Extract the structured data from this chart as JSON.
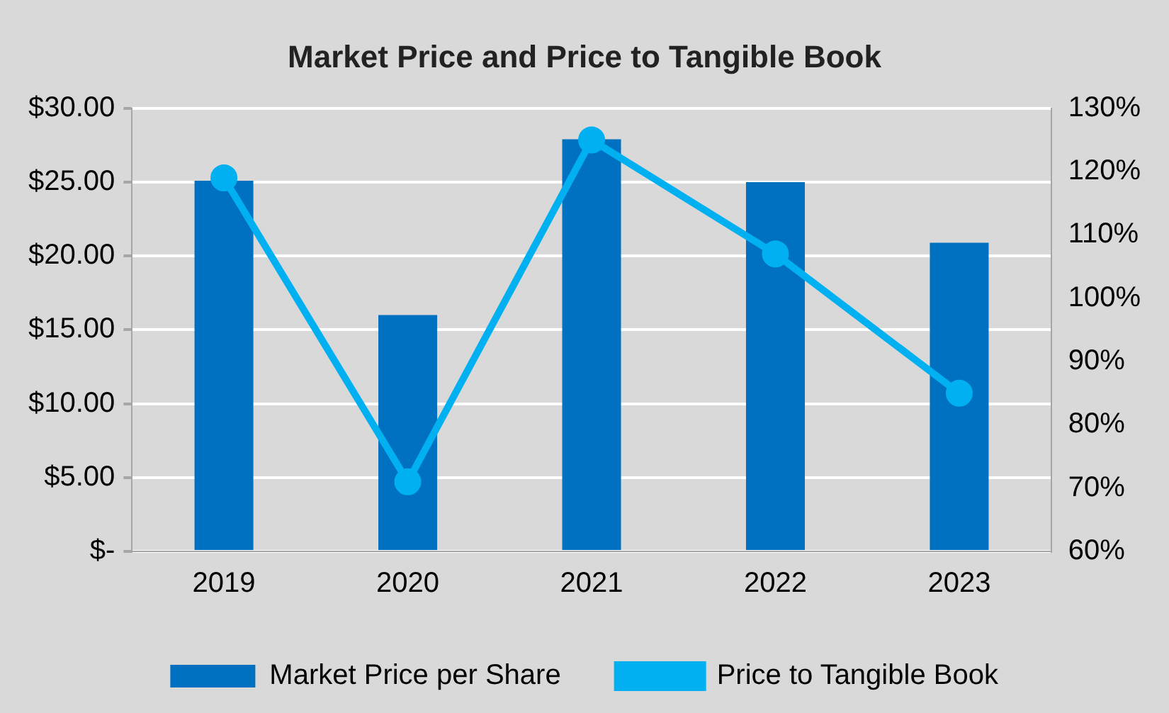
{
  "chart_data": {
    "type": "bar",
    "title": "Market Price and Price to Tangible Book",
    "categories": [
      "2019",
      "2020",
      "2021",
      "2022",
      "2023"
    ],
    "series": [
      {
        "name": "Market Price per Share",
        "color": "#0070c0",
        "values": [
          25.1,
          16.0,
          27.9,
          25.0,
          20.9
        ]
      },
      {
        "name": "Price to Tangible Book",
        "type": "line",
        "axis": "y2",
        "color": "#00b0f0",
        "values": [
          119,
          71,
          125,
          107,
          85
        ]
      }
    ],
    "ylim": [
      0,
      30
    ],
    "yticks": [
      {
        "value": 0,
        "label": "$-"
      },
      {
        "value": 5,
        "label": "$5.00"
      },
      {
        "value": 10,
        "label": "$10.00"
      },
      {
        "value": 15,
        "label": "$15.00"
      },
      {
        "value": 20,
        "label": "$20.00"
      },
      {
        "value": 25,
        "label": "$25.00"
      },
      {
        "value": 30,
        "label": "$30.00"
      }
    ],
    "y2lim": [
      60,
      130
    ],
    "y2ticks": [
      {
        "value": 60,
        "label": "60%"
      },
      {
        "value": 70,
        "label": "70%"
      },
      {
        "value": 80,
        "label": "80%"
      },
      {
        "value": 90,
        "label": "90%"
      },
      {
        "value": 100,
        "label": "100%"
      },
      {
        "value": 110,
        "label": "110%"
      },
      {
        "value": 120,
        "label": "120%"
      },
      {
        "value": 130,
        "label": "130%"
      }
    ],
    "grid": "y",
    "legend": "bottom",
    "marker": "circle",
    "line_style": "solid"
  }
}
